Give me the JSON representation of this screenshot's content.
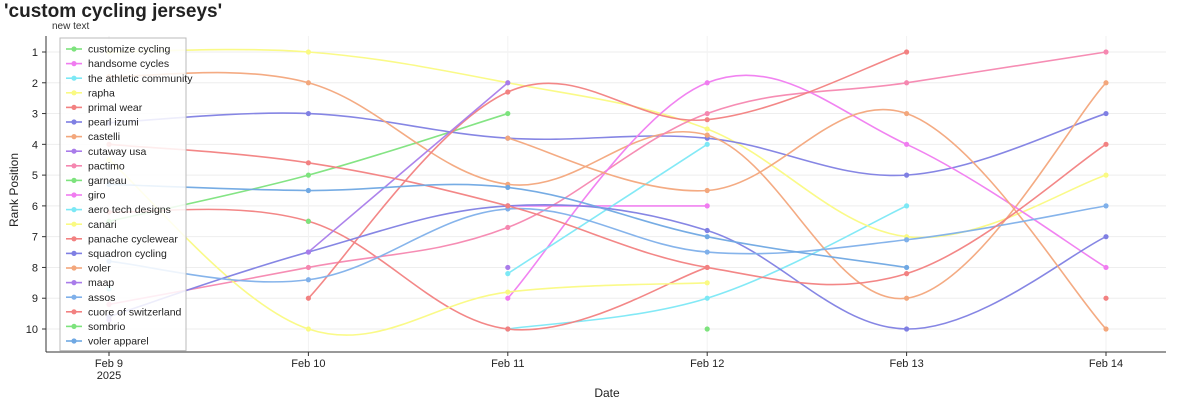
{
  "chart_data": {
    "type": "line",
    "title": "'custom cycling jerseys'",
    "subtitle": "new text",
    "xlabel": "Date",
    "ylabel": "Rank Position",
    "x": [
      "Feb 9",
      "Feb 10",
      "Feb 11",
      "Feb 12",
      "Feb 13",
      "Feb 14"
    ],
    "x_year_label": "2025",
    "y_ticks": [
      1,
      2,
      3,
      4,
      5,
      6,
      7,
      8,
      9,
      10
    ],
    "ylim": [
      10.7,
      0.6
    ],
    "y_reversed": true,
    "grid": true,
    "legend_position": "top-left",
    "series": [
      {
        "name": "customize cycling",
        "color": "#7de37d",
        "values": [
          6.5,
          5,
          3,
          null,
          null,
          null
        ]
      },
      {
        "name": "handsome cycles",
        "color": "#f07cf0",
        "values": [
          null,
          null,
          6,
          6,
          null,
          null
        ]
      },
      {
        "name": "the athletic community",
        "color": "#7ce8f5",
        "values": [
          8.7,
          null,
          10,
          9,
          6,
          null
        ]
      },
      {
        "name": "rapha",
        "color": "#fafa82",
        "values": [
          1,
          1,
          2,
          3.5,
          7,
          5
        ]
      },
      {
        "name": "primal wear",
        "color": "#f28181",
        "values": [
          6.2,
          6.5,
          10,
          8,
          null,
          9
        ]
      },
      {
        "name": "pearl izumi",
        "color": "#7f7fe3",
        "values": [
          3.3,
          3,
          3.8,
          3.8,
          5,
          3
        ]
      },
      {
        "name": "castelli",
        "color": "#f3a77c",
        "values": [
          1.8,
          2,
          5.3,
          3.7,
          9,
          2
        ]
      },
      {
        "name": "cutaway usa",
        "color": "#a97cea",
        "values": [
          9.7,
          null,
          8,
          null,
          null,
          null
        ]
      },
      {
        "name": "pactimo",
        "color": "#f587b0",
        "values": [
          9.2,
          8,
          6.7,
          3,
          2,
          1
        ]
      },
      {
        "name": "garneau",
        "color": "#7de37d",
        "values": [
          null,
          6.5,
          null,
          10,
          null,
          null
        ]
      },
      {
        "name": "giro",
        "color": "#f07cf0",
        "values": [
          null,
          null,
          9,
          2,
          4,
          8
        ]
      },
      {
        "name": "aero tech designs",
        "color": "#7ce8f5",
        "values": [
          null,
          null,
          8.2,
          4,
          null,
          null
        ]
      },
      {
        "name": "canari",
        "color": "#fafa82",
        "values": [
          4.5,
          10,
          8.8,
          8.5,
          null,
          null
        ]
      },
      {
        "name": "panache cyclewear",
        "color": "#f28181",
        "values": [
          null,
          9,
          2.3,
          3.2,
          1,
          null
        ]
      },
      {
        "name": "squadron cycling",
        "color": "#7f7fe3",
        "values": [
          9.6,
          7.5,
          6,
          6.8,
          10,
          7
        ]
      },
      {
        "name": "voler",
        "color": "#f3a77c",
        "values": [
          null,
          null,
          3.8,
          5.5,
          3,
          10
        ]
      },
      {
        "name": "maap",
        "color": "#a97cea",
        "values": [
          null,
          7.5,
          2,
          null,
          null,
          null
        ]
      },
      {
        "name": "assos",
        "color": "#7fb0ea",
        "values": [
          7.8,
          8.4,
          6.1,
          7.5,
          7.1,
          6
        ]
      },
      {
        "name": "cuore of switzerland",
        "color": "#f28181",
        "values": [
          4,
          4.6,
          6,
          8,
          8.2,
          4
        ]
      },
      {
        "name": "sombrio",
        "color": "#7de37d",
        "values": [
          null,
          null,
          null,
          null,
          null,
          null
        ]
      },
      {
        "name": "voler apparel",
        "color": "#6fa8e3",
        "values": [
          5.3,
          5.5,
          5.4,
          7,
          8,
          null
        ]
      }
    ]
  }
}
